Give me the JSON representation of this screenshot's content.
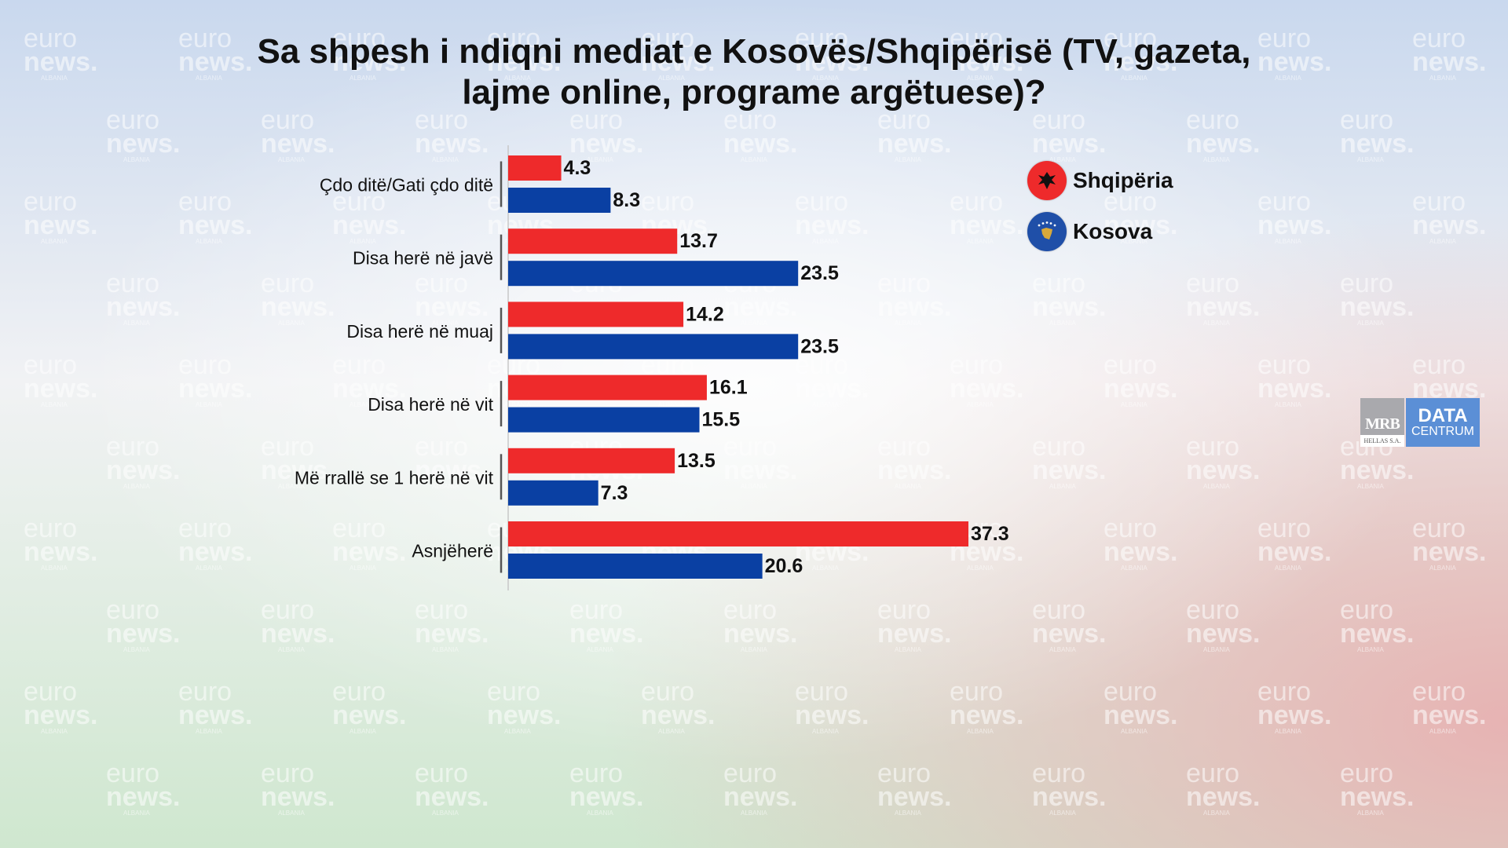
{
  "watermark": {
    "line1": "euro",
    "line2": "news.",
    "line3": "ALBANIA"
  },
  "colors": {
    "shqiperia": "#ee2a2b",
    "kosova": "#0a40a3"
  },
  "legend": [
    {
      "label": "Shqipëria",
      "icon": "albania-flag-icon"
    },
    {
      "label": "Kosova",
      "icon": "kosovo-flag-icon"
    }
  ],
  "logo": {
    "mrb": "MRB",
    "mrb_sub": "HELLAS S.A.",
    "data": "DATA",
    "centrum": "CENTRUM"
  },
  "chart_data": {
    "type": "bar",
    "orientation": "horizontal",
    "title": [
      "Sa shpesh i ndiqni mediat e Kosovës/Shqipërisë (TV, gazeta,",
      "lajme online, programe argëtuese)?"
    ],
    "categories": [
      "Çdo ditë/Gati çdo ditë",
      "Disa herë në javë",
      "Disa herë në muaj",
      "Disa herë në vit",
      "Më rrallë se 1 herë në vit",
      "Asnjëherë"
    ],
    "series": [
      {
        "name": "Shqipëria",
        "values": [
          4.3,
          13.7,
          14.2,
          16.1,
          13.5,
          37.3
        ]
      },
      {
        "name": "Kosova",
        "values": [
          8.3,
          23.5,
          23.5,
          15.5,
          7.3,
          20.6
        ]
      }
    ],
    "xlim": [
      0,
      37.3
    ],
    "grid": false,
    "legend_position": "top-right",
    "data_labels": true
  }
}
